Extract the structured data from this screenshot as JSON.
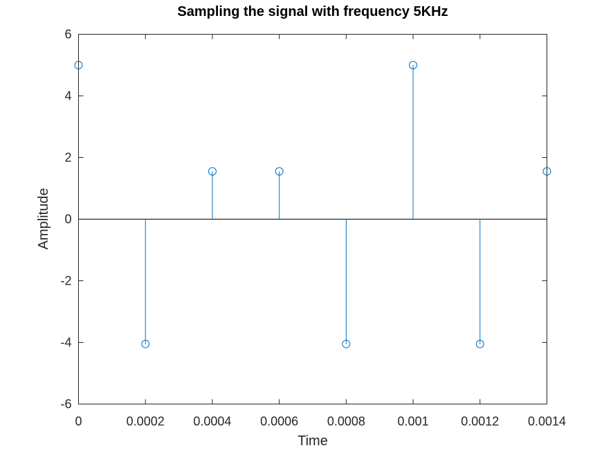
{
  "chart_data": {
    "type": "stem",
    "title": "Sampling the signal with frequency 5KHz",
    "xlabel": "Time",
    "ylabel": "Amplitude",
    "xlim": [
      0,
      0.0014
    ],
    "ylim": [
      -6,
      6
    ],
    "x_ticks": [
      "0",
      "0.0002",
      "0.0004",
      "0.0006",
      "0.0008",
      "0.001",
      "0.0012",
      "0.0014"
    ],
    "y_ticks": [
      "-6",
      "-4",
      "-2",
      "0",
      "2",
      "4",
      "6"
    ],
    "grid": false,
    "series": [
      {
        "x": [
          0,
          0.0002,
          0.0004,
          0.0006,
          0.0008,
          0.001,
          0.0012,
          0.0014
        ],
        "y": [
          5,
          -4.05,
          1.55,
          1.55,
          -4.05,
          5,
          -4.05,
          1.55
        ],
        "color": "#0072BD",
        "marker": "circle"
      }
    ]
  }
}
